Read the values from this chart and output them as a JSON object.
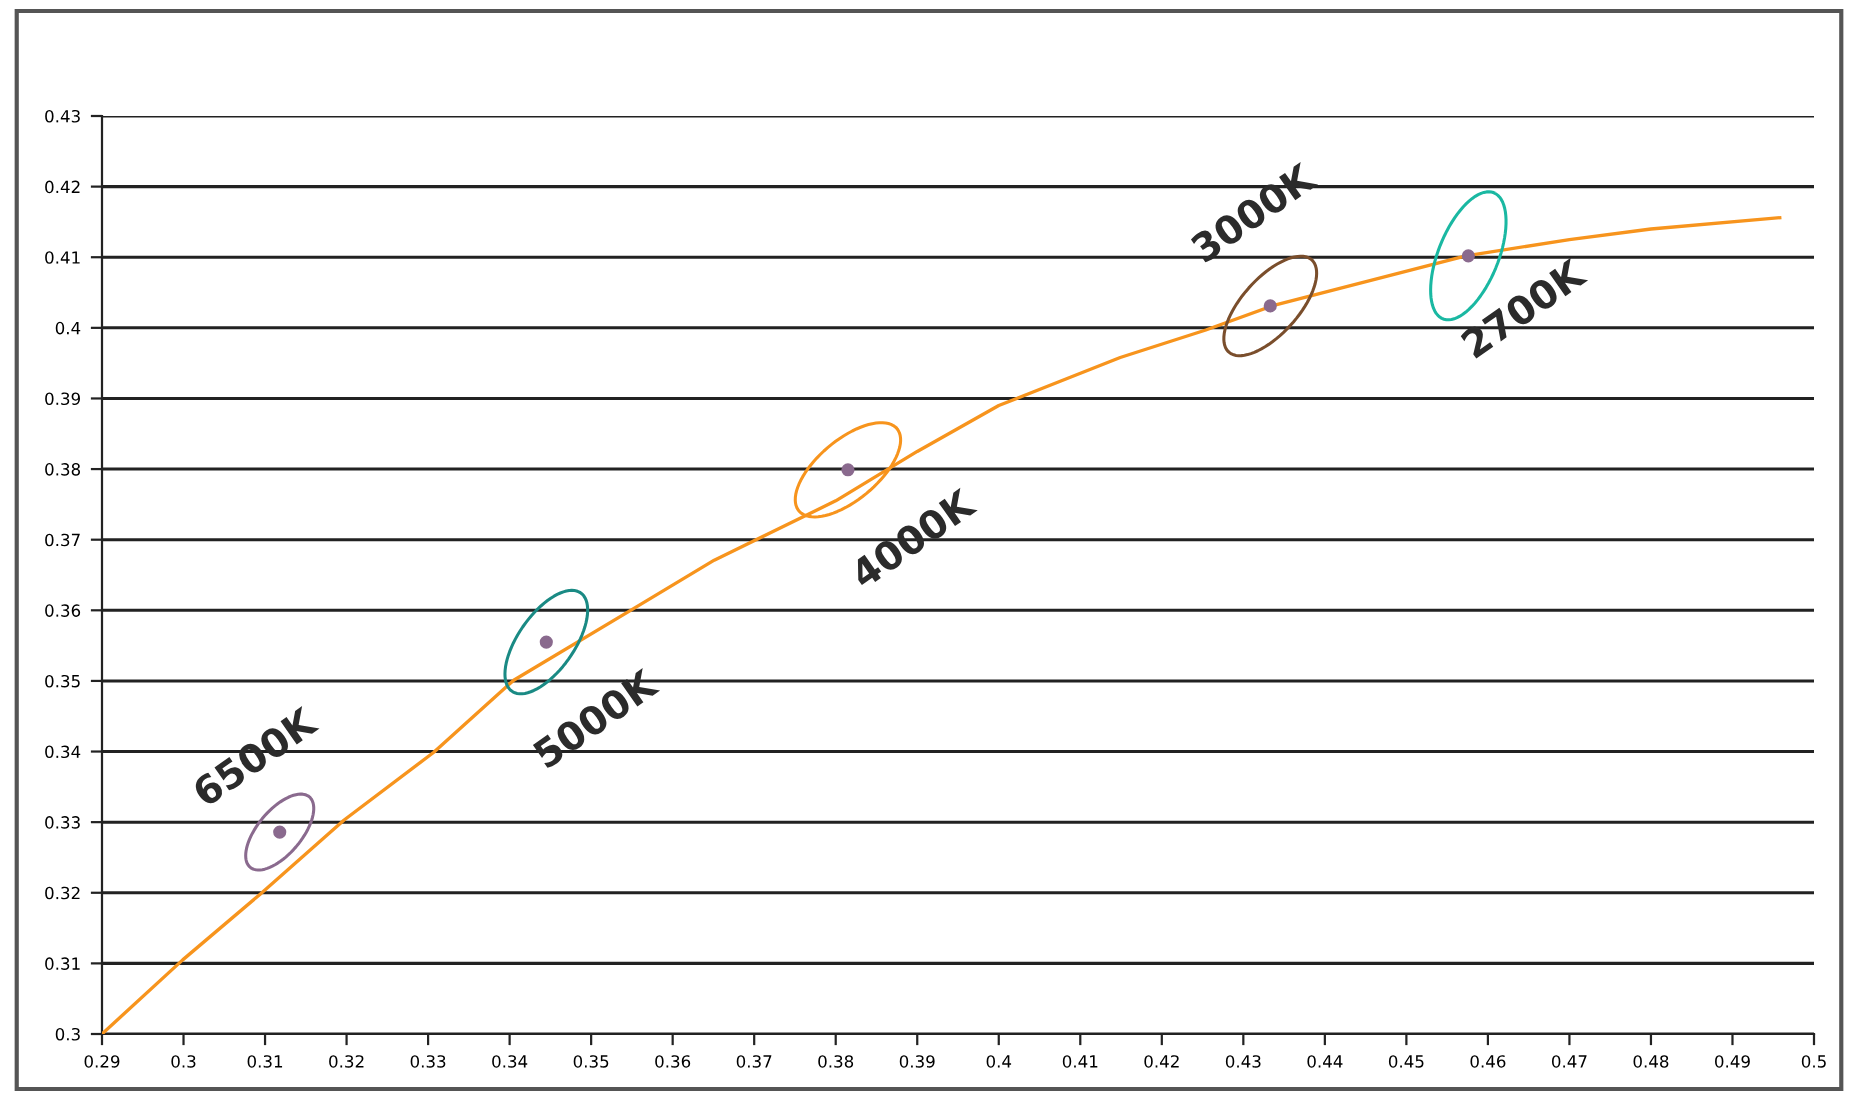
{
  "chart_data": {
    "type": "scatter",
    "series": [
      {
        "type": "line",
        "color": "#f7941d",
        "marker": "none",
        "x": [
          0.29,
          0.2999,
          0.3094,
          0.3197,
          0.3307,
          0.3405,
          0.3553,
          0.3651,
          0.38,
          0.39,
          0.4,
          0.4149,
          0.4254,
          0.4335,
          0.4573,
          0.47,
          0.48,
          0.4958
        ],
        "values": [
          0.3,
          0.3105,
          0.3198,
          0.3303,
          0.3399,
          0.3501,
          0.3603,
          0.3671,
          0.3755,
          0.3825,
          0.389,
          0.3958,
          0.3997,
          0.4031,
          0.4102,
          0.4125,
          0.414,
          0.4156
        ]
      },
      {
        "color": "#8a6a8e",
        "marker": "circle",
        "x": [
          0.3118,
          0.3445,
          0.3815,
          0.4333,
          0.4576
        ],
        "values": [
          0.3286,
          0.3555,
          0.3799,
          0.4031,
          0.4102
        ]
      }
    ],
    "annotations": [
      {
        "text": "6500K",
        "x": 0.3118,
        "y": 0.3286
      },
      {
        "text": "5000K",
        "x": 0.3445,
        "y": 0.3555
      },
      {
        "text": "4000K",
        "x": 0.3815,
        "y": 0.3799
      },
      {
        "text": "3000K",
        "x": 0.4333,
        "y": 0.4031
      },
      {
        "text": "2700K",
        "x": 0.4576,
        "y": 0.4102
      }
    ],
    "xlim": [
      0.29,
      0.5
    ],
    "xticks": [
      0.29,
      0.3,
      0.31,
      0.32,
      0.33,
      0.34,
      0.35,
      0.36,
      0.37,
      0.38,
      0.39,
      0.4,
      0.41,
      0.42,
      0.43,
      0.44,
      0.45,
      0.46,
      0.47,
      0.48,
      0.49,
      0.5
    ],
    "ylim": [
      0.3,
      0.43
    ],
    "yticks": [
      0.3,
      0.31,
      0.32,
      0.33,
      0.34,
      0.35,
      0.36,
      0.37,
      0.38,
      0.39,
      0.4,
      0.41,
      0.42,
      0.43
    ],
    "grid": "y",
    "legend": false
  }
}
